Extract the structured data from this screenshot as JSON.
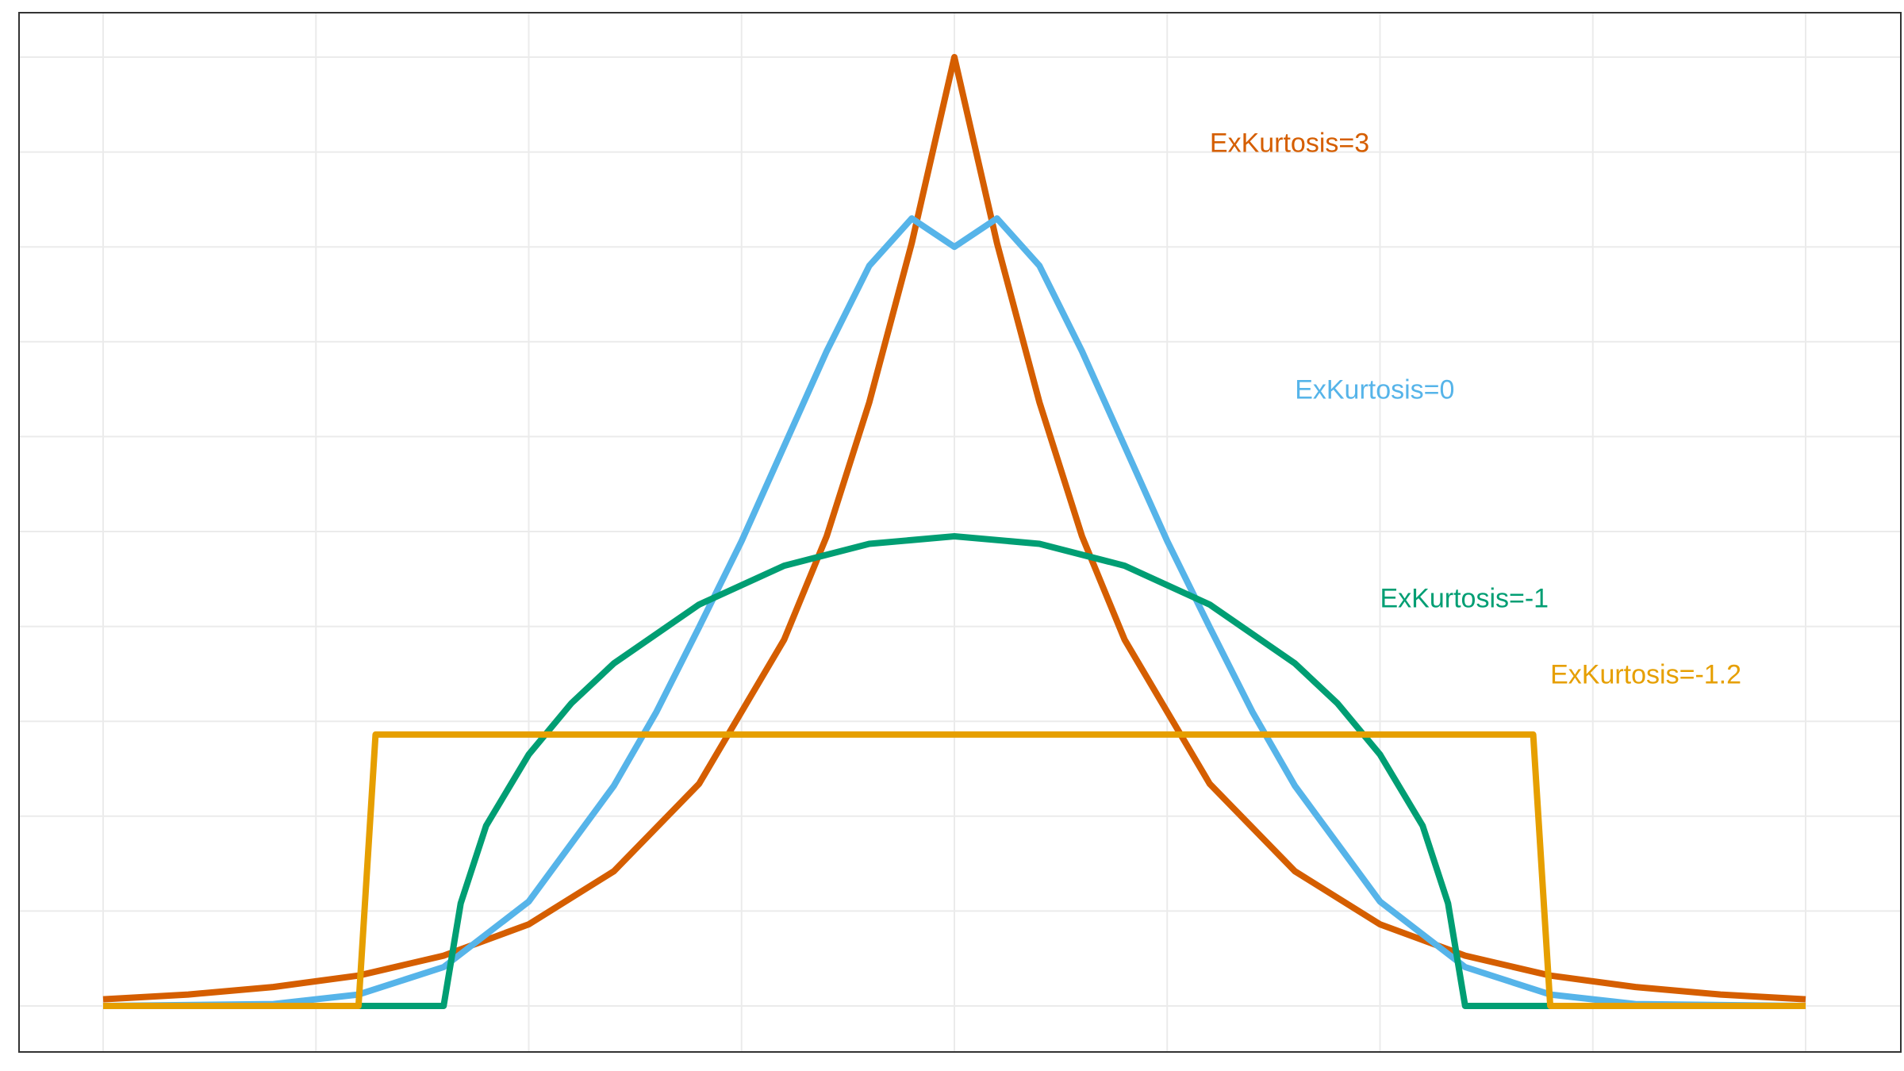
{
  "chart_data": {
    "type": "line",
    "title": "",
    "xlabel": "",
    "ylabel": "",
    "xlim": [
      -2,
      2
    ],
    "ylim": [
      -0.04,
      1.02
    ],
    "x_gridlines": [
      -2,
      -1.5,
      -1,
      -0.5,
      0,
      0.5,
      1,
      1.5,
      2
    ],
    "y_gridlines": [
      0,
      0.1,
      0.2,
      0.3,
      0.4,
      0.5,
      0.6,
      0.7,
      0.8,
      0.9,
      1.0
    ],
    "grid": true,
    "series": [
      {
        "name": "ExKurtosis=3",
        "color": "#D55E00",
        "x": [
          -2,
          -1.8,
          -1.6,
          -1.4,
          -1.2,
          -1,
          -0.8,
          -0.6,
          -0.4,
          -0.3,
          -0.2,
          -0.1,
          0,
          0.1,
          0.2,
          0.3,
          0.4,
          0.6,
          0.8,
          1,
          1.2,
          1.4,
          1.6,
          1.8,
          2
        ],
        "y": [
          0.007,
          0.012,
          0.02,
          0.032,
          0.053,
          0.086,
          0.142,
          0.234,
          0.386,
          0.495,
          0.636,
          0.804,
          1.0,
          0.804,
          0.636,
          0.495,
          0.386,
          0.234,
          0.142,
          0.086,
          0.053,
          0.032,
          0.02,
          0.012,
          0.007
        ]
      },
      {
        "name": "ExKurtosis=0",
        "color": "#56B4E9",
        "x": [
          -2,
          -1.6,
          -1.4,
          -1.2,
          -1,
          -0.8,
          -0.7,
          -0.6,
          -0.5,
          -0.4,
          -0.3,
          -0.2,
          -0.1,
          0,
          0.1,
          0.2,
          0.3,
          0.4,
          0.5,
          0.6,
          0.7,
          0.8,
          1,
          1.2,
          1.4,
          1.6,
          2
        ],
        "y": [
          0.0,
          0.002,
          0.012,
          0.041,
          0.11,
          0.232,
          0.31,
          0.399,
          0.49,
          0.59,
          0.69,
          0.78,
          0.83,
          0.8,
          0.83,
          0.78,
          0.69,
          0.59,
          0.49,
          0.399,
          0.31,
          0.232,
          0.11,
          0.041,
          0.012,
          0.002,
          0.0
        ]
      },
      {
        "name": "ExKurtosis=-1",
        "color": "#009E73",
        "x": [
          -2,
          -1.4,
          -1.2,
          -1.16,
          -1.1,
          -1.0,
          -0.9,
          -0.8,
          -0.6,
          -0.4,
          -0.2,
          0,
          0.2,
          0.4,
          0.6,
          0.8,
          0.9,
          1.0,
          1.1,
          1.16,
          1.2,
          1.4,
          2
        ],
        "y": [
          0.0,
          0.0,
          0.0,
          0.108,
          0.19,
          0.265,
          0.319,
          0.361,
          0.423,
          0.464,
          0.487,
          0.495,
          0.487,
          0.464,
          0.423,
          0.361,
          0.319,
          0.265,
          0.19,
          0.108,
          0.0,
          0.0,
          0.0
        ]
      },
      {
        "name": "ExKurtosis=-1.2",
        "color": "#E69F00",
        "x": [
          -2,
          -1.4,
          -1.36,
          1.36,
          1.4,
          2
        ],
        "y": [
          0.0,
          0.0,
          0.286,
          0.286,
          0.0,
          0.0
        ]
      }
    ],
    "annotations": [
      {
        "series": 0,
        "text": "ExKurtosis=3",
        "x": 0.6,
        "y": 0.9
      },
      {
        "series": 1,
        "text": "ExKurtosis=0",
        "x": 0.8,
        "y": 0.64
      },
      {
        "series": 2,
        "text": "ExKurtosis=-1",
        "x": 1.0,
        "y": 0.42
      },
      {
        "series": 3,
        "text": "ExKurtosis=-1.2",
        "x": 1.4,
        "y": 0.34
      }
    ]
  }
}
